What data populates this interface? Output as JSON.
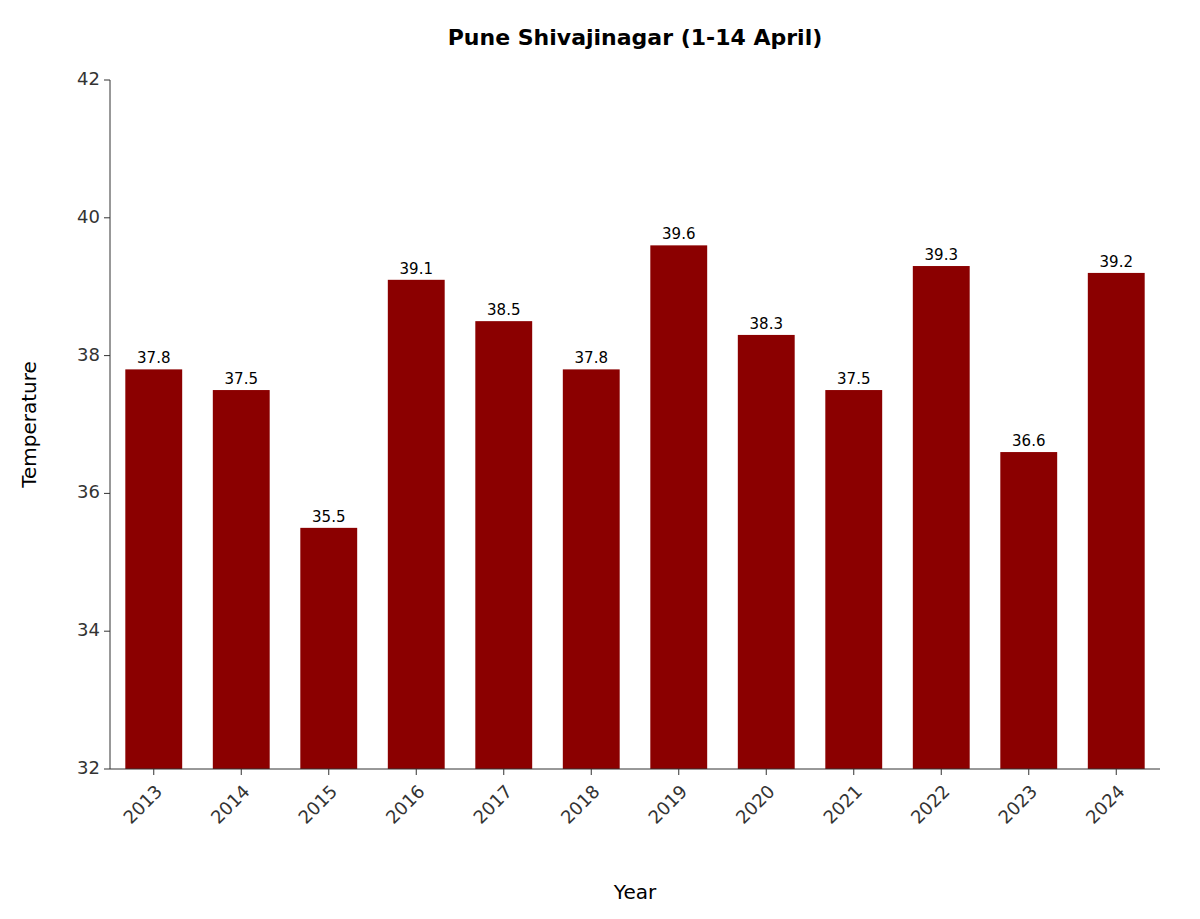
{
  "chart_data": {
    "type": "bar",
    "title": "Pune Shivajinagar (1-14 April)",
    "xlabel": "Year",
    "ylabel": "Temperature",
    "categories": [
      "2013",
      "2014",
      "2015",
      "2016",
      "2017",
      "2018",
      "2019",
      "2020",
      "2021",
      "2022",
      "2023",
      "2024"
    ],
    "values": [
      37.8,
      37.5,
      35.5,
      39.1,
      38.5,
      37.8,
      39.6,
      38.3,
      37.5,
      39.3,
      36.6,
      39.2
    ],
    "color": "#8B0000",
    "ylim": [
      32,
      42
    ],
    "yticks": [
      32,
      34,
      36,
      38,
      40,
      42
    ],
    "grid": false,
    "data_labels": true
  }
}
